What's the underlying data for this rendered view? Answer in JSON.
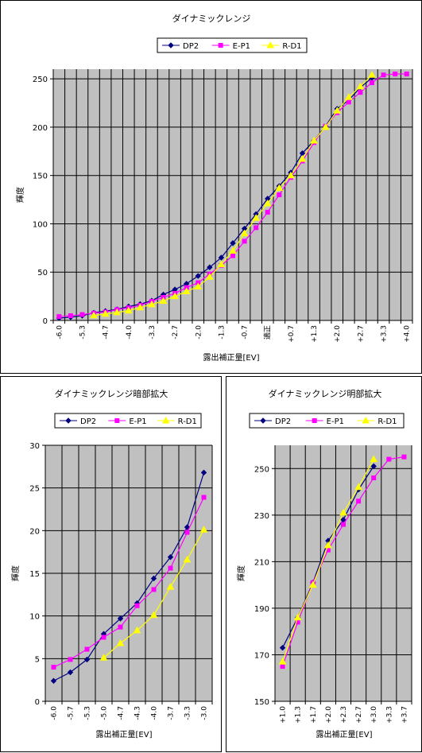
{
  "chart_data": [
    {
      "type": "line",
      "title": "ダイナミックレンジ",
      "xlabel": "露出補正量[EV]",
      "ylabel": "輝度",
      "ylim": [
        0,
        260
      ],
      "yticks": [
        0,
        50,
        100,
        150,
        200,
        250
      ],
      "grid": true,
      "legend": "top",
      "categories": [
        "-6.0",
        "-5.7",
        "-5.3",
        "-5.0",
        "-4.7",
        "-4.3",
        "-4.0",
        "-3.7",
        "-3.3",
        "-3.0",
        "-2.7",
        "-2.3",
        "-2.0",
        "-1.7",
        "-1.3",
        "-1.0",
        "-0.7",
        "-0.3",
        "適正",
        "+0.3",
        "+0.7",
        "+1.0",
        "+1.3",
        "+1.7",
        "+2.0",
        "+2.3",
        "+2.7",
        "+3.0",
        "+3.3",
        "+3.7",
        "+4.0"
      ],
      "xtick_labels": [
        "-6.0",
        "",
        "-5.3",
        "",
        "-4.7",
        "",
        "-4.0",
        "",
        "-3.3",
        "",
        "-2.7",
        "",
        "-2.0",
        "",
        "-1.3",
        "",
        "-0.7",
        "",
        "適正",
        "",
        "+0.7",
        "",
        "+1.3",
        "",
        "+2.0",
        "",
        "+2.7",
        "",
        "+3.3",
        "",
        "+4.0"
      ],
      "series": [
        {
          "name": "DP2",
          "color": "#000080",
          "marker": "diamond",
          "values": [
            2.4,
            3.4,
            4.9,
            7.9,
            9.7,
            11.5,
            14.4,
            16.9,
            20.4,
            26.8,
            32,
            38,
            46,
            55,
            65,
            80,
            95,
            110,
            126,
            139,
            153,
            173,
            186,
            201,
            219,
            228,
            241,
            251,
            null,
            null,
            null
          ]
        },
        {
          "name": "E-P1",
          "color": "#FF00FF",
          "marker": "square",
          "values": [
            4,
            4.9,
            6.1,
            7.5,
            8.7,
            11.2,
            13.1,
            15.6,
            19.8,
            23.9,
            28,
            34,
            39,
            48,
            57,
            67,
            82,
            96,
            112,
            130,
            148,
            165,
            184,
            201,
            215,
            226,
            236,
            246,
            254,
            255,
            255
          ]
        },
        {
          "name": "R-D1",
          "color": "#FFFF00",
          "marker": "triangle",
          "values": [
            null,
            null,
            null,
            5.1,
            6.8,
            8.3,
            10.1,
            13.4,
            16.6,
            20.1,
            25,
            30,
            35,
            45,
            58,
            72,
            90,
            106,
            121,
            137,
            150,
            167,
            186,
            200,
            217,
            231,
            242,
            254,
            null,
            null,
            null
          ]
        }
      ]
    },
    {
      "type": "line",
      "title": "ダイナミックレンジ暗部拡大",
      "xlabel": "露出補正量[EV]",
      "ylabel": "輝度",
      "ylim": [
        0,
        30
      ],
      "yticks": [
        0,
        5,
        10,
        15,
        20,
        25,
        30
      ],
      "grid": true,
      "legend": "top",
      "categories": [
        "-6.0",
        "-5.7",
        "-5.3",
        "-5.0",
        "-4.7",
        "-4.3",
        "-4.0",
        "-3.7",
        "-3.3",
        "-3.0"
      ],
      "series": [
        {
          "name": "DP2",
          "color": "#000080",
          "marker": "diamond",
          "values": [
            2.4,
            3.4,
            4.9,
            7.9,
            9.7,
            11.5,
            14.4,
            16.9,
            20.4,
            26.8
          ]
        },
        {
          "name": "E-P1",
          "color": "#FF00FF",
          "marker": "square",
          "values": [
            4,
            4.9,
            6.1,
            7.5,
            8.7,
            11.2,
            13.1,
            15.6,
            19.8,
            23.9
          ]
        },
        {
          "name": "R-D1",
          "color": "#FFFF00",
          "marker": "triangle",
          "values": [
            null,
            null,
            null,
            5.1,
            6.8,
            8.3,
            10.1,
            13.4,
            16.6,
            20.1
          ]
        }
      ]
    },
    {
      "type": "line",
      "title": "ダイナミックレンジ明部拡大",
      "xlabel": "露出補正量[EV]",
      "ylabel": "輝度",
      "ylim": [
        150,
        260
      ],
      "yticks": [
        150,
        170,
        190,
        210,
        230,
        250
      ],
      "grid": true,
      "legend": "top",
      "categories": [
        "+1.0",
        "+1.3",
        "+1.7",
        "+2.0",
        "+2.3",
        "+2.7",
        "+3.0",
        "+3.3",
        "+3.7"
      ],
      "series": [
        {
          "name": "DP2",
          "color": "#000080",
          "marker": "diamond",
          "values": [
            173,
            186,
            201,
            219,
            228,
            241,
            251,
            null,
            null
          ]
        },
        {
          "name": "E-P1",
          "color": "#FF00FF",
          "marker": "square",
          "values": [
            165,
            184,
            201,
            215,
            226,
            236,
            246,
            254,
            255
          ]
        },
        {
          "name": "R-D1",
          "color": "#FFFF00",
          "marker": "triangle",
          "values": [
            167,
            186,
            200,
            217,
            231,
            242,
            254,
            null,
            null
          ]
        }
      ]
    }
  ]
}
